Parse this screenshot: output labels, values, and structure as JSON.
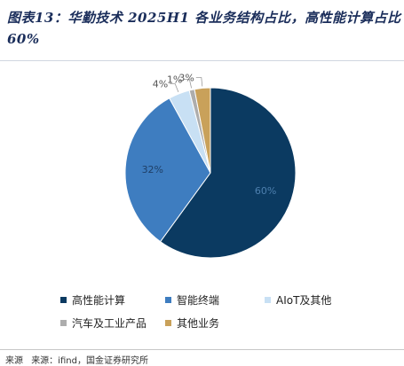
{
  "title": "图表13：华勤技术 2025H1 各业务结构占比，高性能计算占比 60%",
  "chart_data": {
    "type": "pie",
    "title": "图表13：华勤技术 2025H1 各业务结构占比，高性能计算占比 60%",
    "slices": [
      {
        "name": "高性能计算",
        "value": 60,
        "label": "60%",
        "color": "#0b3a61"
      },
      {
        "name": "智能终端",
        "value": 32,
        "label": "32%",
        "color": "#3e7dc0"
      },
      {
        "name": "AIoT及其他",
        "value": 4,
        "label": "4%",
        "color": "#c8e0f4"
      },
      {
        "name": "汽车及工业产品",
        "value": 1,
        "label": "1%",
        "color": "#adadad"
      },
      {
        "name": "其他业务",
        "value": 3,
        "label": "3%",
        "color": "#c9a15a"
      }
    ],
    "legend_position": "bottom"
  },
  "source": {
    "lead": "来源",
    "text": "来源：ifind，国金证券研究所"
  }
}
